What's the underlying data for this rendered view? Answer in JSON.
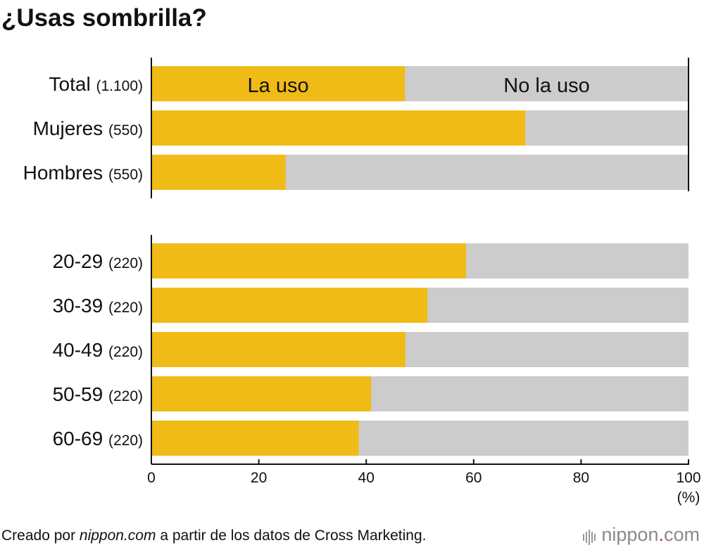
{
  "title": "¿Usas sombrilla?",
  "footer": {
    "prefix": "Creado por ",
    "site": "nippon.com",
    "suffix": " a partir de los datos de Cross Marketing."
  },
  "logo": {
    "part1": "nippon",
    "dot": ".",
    "part2": "com"
  },
  "colors": {
    "yes": "#f0bb16",
    "no": "#cccccc",
    "axis": "#111111"
  },
  "chart_data": {
    "type": "bar",
    "orientation": "horizontal",
    "stacked": true,
    "title": "¿Usas sombrilla?",
    "xlim": [
      0,
      100
    ],
    "xticks": [
      0,
      20,
      40,
      60,
      80,
      100
    ],
    "x_unit_label": "(%)",
    "series": [
      {
        "name": "La uso",
        "color": "#f0bb16"
      },
      {
        "name": "No la uso",
        "color": "#cccccc"
      }
    ],
    "groups": [
      {
        "categories": [
          {
            "label": "Total",
            "n": "(1.100)",
            "value": 47.2
          },
          {
            "label": "Mujeres",
            "n": "(550)",
            "value": 69.6
          },
          {
            "label": "Hombres",
            "n": "(550)",
            "value": 25.0
          }
        ]
      },
      {
        "categories": [
          {
            "label": "20-29",
            "n": "(220)",
            "value": 58.6
          },
          {
            "label": "30-39",
            "n": "(220)",
            "value": 51.4
          },
          {
            "label": "40-49",
            "n": "(220)",
            "value": 47.3
          },
          {
            "label": "50-59",
            "n": "(220)",
            "value": 40.9
          },
          {
            "label": "60-69",
            "n": "(220)",
            "value": 38.6
          }
        ]
      }
    ]
  }
}
